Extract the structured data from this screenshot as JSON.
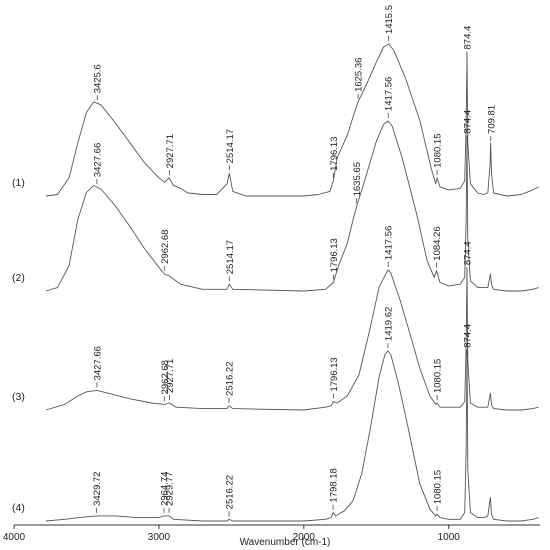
{
  "chart_data": {
    "type": "line",
    "title": "",
    "xlabel": "Wavenumber (cm-1)",
    "ylabel": "",
    "xlim": [
      4000,
      370
    ],
    "x_reversed": true,
    "xticks": [
      {
        "value": 4000,
        "label": "4000"
      },
      {
        "value": 3000,
        "label": "3000"
      },
      {
        "value": 2000,
        "label": "2000"
      },
      {
        "value": 1000,
        "label": "1000"
      }
    ],
    "grid": false,
    "series": [
      {
        "name": "(1)",
        "color": "#555555",
        "points": [
          [
            3780,
            0
          ],
          [
            3700,
            0.01
          ],
          [
            3620,
            0.12
          ],
          [
            3560,
            0.35
          ],
          [
            3500,
            0.55
          ],
          [
            3450,
            0.62
          ],
          [
            3400,
            0.6
          ],
          [
            3300,
            0.48
          ],
          [
            3200,
            0.35
          ],
          [
            3100,
            0.22
          ],
          [
            3000,
            0.12
          ],
          [
            2960,
            0.09
          ],
          [
            2930,
            0.12
          ],
          [
            2900,
            0.07
          ],
          [
            2850,
            0.05
          ],
          [
            2800,
            0.02
          ],
          [
            2700,
            0.01
          ],
          [
            2600,
            0.01
          ],
          [
            2560,
            0.05
          ],
          [
            2530,
            0.08
          ],
          [
            2514,
            0.15
          ],
          [
            2490,
            0.03
          ],
          [
            2400,
            0.0
          ],
          [
            2000,
            0.0
          ],
          [
            1900,
            0.01
          ],
          [
            1820,
            0.03
          ],
          [
            1796,
            0.1
          ],
          [
            1770,
            0.25
          ],
          [
            1700,
            0.4
          ],
          [
            1650,
            0.55
          ],
          [
            1625,
            0.62
          ],
          [
            1560,
            0.75
          ],
          [
            1500,
            0.88
          ],
          [
            1450,
            0.98
          ],
          [
            1415,
            1.0
          ],
          [
            1380,
            0.96
          ],
          [
            1300,
            0.78
          ],
          [
            1200,
            0.5
          ],
          [
            1120,
            0.18
          ],
          [
            1090,
            0.08
          ],
          [
            1080,
            0.12
          ],
          [
            1060,
            0.06
          ],
          [
            1000,
            0.04
          ],
          [
            920,
            0.05
          ],
          [
            890,
            0.1
          ],
          [
            880,
            0.45
          ],
          [
            874,
            0.93
          ],
          [
            868,
            0.35
          ],
          [
            850,
            0.08
          ],
          [
            800,
            0.02
          ],
          [
            760,
            0.01
          ],
          [
            730,
            0.02
          ],
          [
            715,
            0.2
          ],
          [
            710,
            0.35
          ],
          [
            705,
            0.15
          ],
          [
            690,
            0.02
          ],
          [
            600,
            0.0
          ],
          [
            500,
            0.01
          ],
          [
            420,
            0.04
          ],
          [
            380,
            0.06
          ]
        ]
      },
      {
        "name": "(2)",
        "color": "#555555",
        "points": [
          [
            3780,
            0
          ],
          [
            3700,
            0.02
          ],
          [
            3620,
            0.15
          ],
          [
            3560,
            0.42
          ],
          [
            3500,
            0.58
          ],
          [
            3450,
            0.62
          ],
          [
            3400,
            0.6
          ],
          [
            3300,
            0.5
          ],
          [
            3200,
            0.38
          ],
          [
            3100,
            0.25
          ],
          [
            3000,
            0.14
          ],
          [
            2962,
            0.1
          ],
          [
            2930,
            0.09
          ],
          [
            2850,
            0.04
          ],
          [
            2700,
            0.01
          ],
          [
            2530,
            0.01
          ],
          [
            2514,
            0.04
          ],
          [
            2490,
            0.01
          ],
          [
            2000,
            0.0
          ],
          [
            1850,
            0.01
          ],
          [
            1796,
            0.05
          ],
          [
            1760,
            0.15
          ],
          [
            1700,
            0.28
          ],
          [
            1660,
            0.42
          ],
          [
            1635,
            0.5
          ],
          [
            1580,
            0.65
          ],
          [
            1500,
            0.88
          ],
          [
            1450,
            0.98
          ],
          [
            1418,
            1.0
          ],
          [
            1390,
            0.97
          ],
          [
            1320,
            0.78
          ],
          [
            1220,
            0.45
          ],
          [
            1150,
            0.18
          ],
          [
            1100,
            0.08
          ],
          [
            1084,
            0.12
          ],
          [
            1060,
            0.05
          ],
          [
            1000,
            0.03
          ],
          [
            920,
            0.04
          ],
          [
            890,
            0.08
          ],
          [
            880,
            0.4
          ],
          [
            874,
            0.9
          ],
          [
            868,
            0.3
          ],
          [
            850,
            0.06
          ],
          [
            800,
            0.02
          ],
          [
            730,
            0.02
          ],
          [
            712,
            0.1
          ],
          [
            705,
            0.04
          ],
          [
            690,
            0.01
          ],
          [
            600,
            0.0
          ],
          [
            500,
            0.0
          ],
          [
            420,
            0.01
          ],
          [
            380,
            0.02
          ]
        ]
      },
      {
        "name": "(3)",
        "color": "#555555",
        "points": [
          [
            3780,
            0
          ],
          [
            3650,
            0.04
          ],
          [
            3560,
            0.1
          ],
          [
            3500,
            0.13
          ],
          [
            3428,
            0.14
          ],
          [
            3350,
            0.12
          ],
          [
            3200,
            0.08
          ],
          [
            3050,
            0.05
          ],
          [
            2962,
            0.04
          ],
          [
            2927,
            0.05
          ],
          [
            2880,
            0.02
          ],
          [
            2700,
            0.01
          ],
          [
            2530,
            0.01
          ],
          [
            2516,
            0.03
          ],
          [
            2490,
            0.01
          ],
          [
            2000,
            0.0
          ],
          [
            1850,
            0.02
          ],
          [
            1810,
            0.03
          ],
          [
            1796,
            0.06
          ],
          [
            1770,
            0.05
          ],
          [
            1700,
            0.1
          ],
          [
            1620,
            0.25
          ],
          [
            1550,
            0.55
          ],
          [
            1480,
            0.88
          ],
          [
            1430,
            0.98
          ],
          [
            1418,
            1.0
          ],
          [
            1400,
            0.98
          ],
          [
            1340,
            0.8
          ],
          [
            1260,
            0.52
          ],
          [
            1200,
            0.3
          ],
          [
            1130,
            0.1
          ],
          [
            1090,
            0.04
          ],
          [
            1080,
            0.05
          ],
          [
            1060,
            0.02
          ],
          [
            1000,
            0.02
          ],
          [
            920,
            0.02
          ],
          [
            890,
            0.06
          ],
          [
            880,
            0.45
          ],
          [
            874,
            1.0
          ],
          [
            868,
            0.35
          ],
          [
            850,
            0.05
          ],
          [
            800,
            0.02
          ],
          [
            730,
            0.02
          ],
          [
            712,
            0.12
          ],
          [
            705,
            0.04
          ],
          [
            690,
            0.01
          ],
          [
            600,
            0.0
          ],
          [
            500,
            0.0
          ],
          [
            420,
            0.01
          ],
          [
            380,
            0.02
          ]
        ]
      },
      {
        "name": "(4)",
        "color": "#555555",
        "points": [
          [
            3780,
            0
          ],
          [
            3650,
            0.01
          ],
          [
            3550,
            0.02
          ],
          [
            3430,
            0.03
          ],
          [
            3300,
            0.03
          ],
          [
            3150,
            0.02
          ],
          [
            3000,
            0.02
          ],
          [
            2964,
            0.03
          ],
          [
            2930,
            0.03
          ],
          [
            2900,
            0.01
          ],
          [
            2700,
            0.0
          ],
          [
            2530,
            0.0
          ],
          [
            2516,
            0.01
          ],
          [
            2490,
            0.0
          ],
          [
            2000,
            0.0
          ],
          [
            1850,
            0.01
          ],
          [
            1810,
            0.02
          ],
          [
            1798,
            0.05
          ],
          [
            1780,
            0.03
          ],
          [
            1720,
            0.06
          ],
          [
            1660,
            0.12
          ],
          [
            1600,
            0.28
          ],
          [
            1540,
            0.55
          ],
          [
            1480,
            0.85
          ],
          [
            1440,
            0.98
          ],
          [
            1420,
            1.0
          ],
          [
            1400,
            0.98
          ],
          [
            1350,
            0.82
          ],
          [
            1280,
            0.55
          ],
          [
            1200,
            0.22
          ],
          [
            1130,
            0.07
          ],
          [
            1090,
            0.03
          ],
          [
            1080,
            0.04
          ],
          [
            1060,
            0.02
          ],
          [
            1000,
            0.01
          ],
          [
            920,
            0.01
          ],
          [
            890,
            0.05
          ],
          [
            880,
            0.4
          ],
          [
            874,
            1.0
          ],
          [
            868,
            0.3
          ],
          [
            850,
            0.05
          ],
          [
            800,
            0.02
          ],
          [
            760,
            0.02
          ],
          [
            730,
            0.03
          ],
          [
            712,
            0.14
          ],
          [
            705,
            0.04
          ],
          [
            690,
            0.01
          ],
          [
            600,
            0.0
          ],
          [
            500,
            0.0
          ],
          [
            420,
            0.01
          ],
          [
            380,
            0.02
          ]
        ]
      }
    ],
    "peak_labels": [
      {
        "series": 0,
        "x": 3425.6,
        "label": "3425.6"
      },
      {
        "series": 0,
        "x": 2927.71,
        "label": "2927.71"
      },
      {
        "series": 0,
        "x": 2514.17,
        "label": "2514.17"
      },
      {
        "series": 0,
        "x": 1796.13,
        "label": "1796.13"
      },
      {
        "series": 0,
        "x": 1625.36,
        "label": "1625.36"
      },
      {
        "series": 0,
        "x": 1415.5,
        "label": "1415.5"
      },
      {
        "series": 0,
        "x": 1080.15,
        "label": "1080.15"
      },
      {
        "series": 0,
        "x": 874.4,
        "label": "874.4"
      },
      {
        "series": 0,
        "x": 709.81,
        "label": "709.81"
      },
      {
        "series": 1,
        "x": 3427.66,
        "label": "3427.66"
      },
      {
        "series": 1,
        "x": 2962.68,
        "label": "2962.68"
      },
      {
        "series": 1,
        "x": 2514.17,
        "label": "2514.17"
      },
      {
        "series": 1,
        "x": 1796.13,
        "label": "1796.13"
      },
      {
        "series": 1,
        "x": 1635.65,
        "label": "1635.65"
      },
      {
        "series": 1,
        "x": 1417.56,
        "label": "1417.56"
      },
      {
        "series": 1,
        "x": 1084.26,
        "label": "1084.26"
      },
      {
        "series": 1,
        "x": 874.4,
        "label": "874.4"
      },
      {
        "series": 2,
        "x": 3427.66,
        "label": "3427.66"
      },
      {
        "series": 2,
        "x": 2962.68,
        "label": "2962.68"
      },
      {
        "series": 2,
        "x": 2927.71,
        "label": "2927.71"
      },
      {
        "series": 2,
        "x": 2516.22,
        "label": "2516.22"
      },
      {
        "series": 2,
        "x": 1796.13,
        "label": "1796.13"
      },
      {
        "series": 2,
        "x": 1417.56,
        "label": "1417.56"
      },
      {
        "series": 2,
        "x": 1080.15,
        "label": "1080.15"
      },
      {
        "series": 2,
        "x": 874.4,
        "label": "874.4"
      },
      {
        "series": 3,
        "x": 3429.72,
        "label": "3429.72"
      },
      {
        "series": 3,
        "x": 2964.74,
        "label": "2964.74"
      },
      {
        "series": 3,
        "x": 2929.77,
        "label": "2929.77"
      },
      {
        "series": 3,
        "x": 2516.22,
        "label": "2516.22"
      },
      {
        "series": 3,
        "x": 1798.18,
        "label": "1798.18"
      },
      {
        "series": 3,
        "x": 1419.62,
        "label": "1419.62"
      },
      {
        "series": 3,
        "x": 1080.15,
        "label": "1080.15"
      },
      {
        "series": 3,
        "x": 874.4,
        "label": "874.4"
      }
    ]
  }
}
